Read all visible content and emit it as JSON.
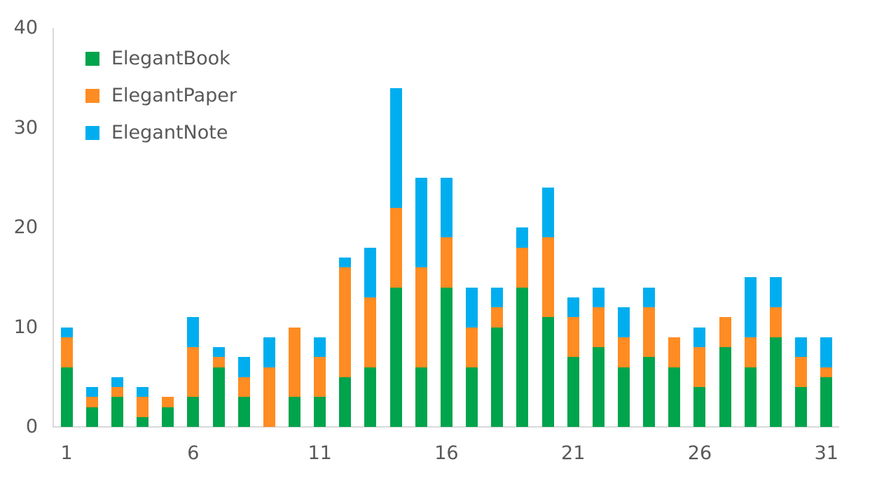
{
  "chart_data": {
    "type": "bar",
    "stacked": true,
    "title": "",
    "xlabel": "",
    "ylabel": "",
    "categories": [
      1,
      2,
      3,
      4,
      5,
      6,
      7,
      8,
      9,
      10,
      11,
      12,
      13,
      14,
      15,
      16,
      17,
      18,
      19,
      20,
      21,
      22,
      23,
      24,
      25,
      26,
      27,
      28,
      29,
      30,
      31
    ],
    "series": [
      {
        "name": "ElegantBook",
        "color": "#00A44C",
        "values": [
          6,
          2,
          3,
          1,
          2,
          3,
          6,
          3,
          0,
          3,
          3,
          5,
          6,
          14,
          6,
          14,
          6,
          10,
          14,
          11,
          7,
          8,
          6,
          7,
          6,
          4,
          8,
          6,
          9,
          4,
          5
        ]
      },
      {
        "name": "ElegantPaper",
        "color": "#FF8C22",
        "values": [
          3,
          1,
          1,
          2,
          1,
          5,
          1,
          2,
          6,
          7,
          4,
          11,
          7,
          8,
          10,
          5,
          4,
          2,
          4,
          8,
          4,
          4,
          3,
          5,
          3,
          4,
          3,
          3,
          3,
          3,
          1
        ]
      },
      {
        "name": "ElegantNote",
        "color": "#00AEEF",
        "values": [
          1,
          1,
          1,
          1,
          0,
          3,
          1,
          2,
          3,
          0,
          2,
          1,
          5,
          12,
          9,
          6,
          4,
          2,
          2,
          5,
          2,
          2,
          3,
          2,
          0,
          2,
          0,
          6,
          3,
          2,
          3
        ]
      }
    ],
    "totals": [
      10,
      4,
      5,
      4,
      3,
      11,
      8,
      7,
      9,
      10,
      9,
      17,
      18,
      34,
      25,
      25,
      14,
      14,
      20,
      24,
      13,
      14,
      12,
      14,
      9,
      10,
      11,
      15,
      15,
      9,
      9
    ],
    "ylim": [
      0,
      40
    ],
    "yticks": [
      0,
      10,
      20,
      30,
      40
    ],
    "x_tick_labels": [
      "1",
      "6",
      "11",
      "16",
      "21",
      "26",
      "31"
    ],
    "x_tick_categories": [
      1,
      6,
      11,
      16,
      21,
      26,
      31
    ],
    "grid": false,
    "legend_position": "top-left-inside",
    "legend_entries": [
      "ElegantBook",
      "ElegantPaper",
      "ElegantNote"
    ]
  },
  "colors": {
    "axis_line": "#d9d9d9",
    "tick_text": "#595959",
    "background": "#ffffff"
  }
}
